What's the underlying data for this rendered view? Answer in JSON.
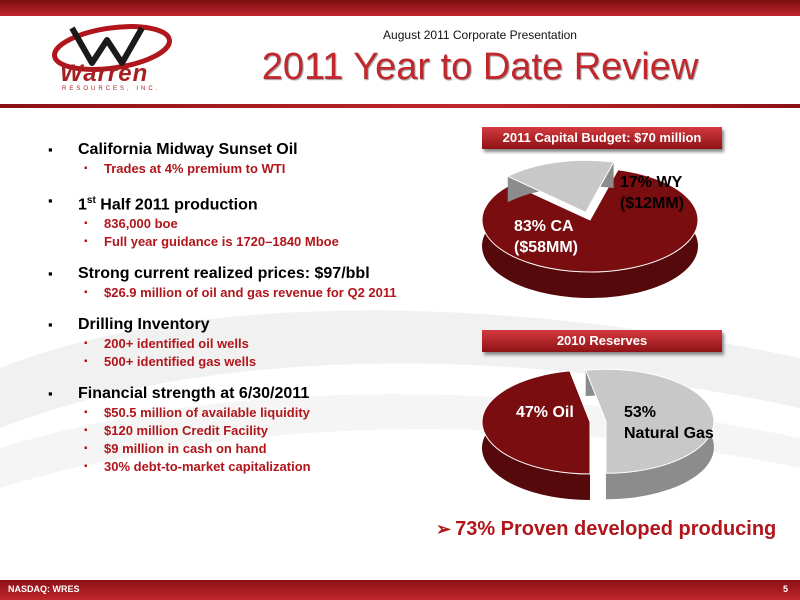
{
  "header": {
    "presentation_label": "August 2011 Corporate Presentation",
    "title": "2011 Year to Date Review",
    "logo_word": "Warren",
    "logo_sub": "RESOURCES, INC."
  },
  "bullets": [
    {
      "text": "California Midway Sunset Oil",
      "subs": [
        "Trades at 4% premium to WTI"
      ]
    },
    {
      "text_pre": "1",
      "text_sup": "st",
      "text_post": " Half 2011 production",
      "subs": [
        "836,000 boe",
        "Full year guidance is 1720–1840 Mboe"
      ]
    },
    {
      "text": "Strong current realized prices: $97/bbl",
      "subs": [
        "$26.9 million of oil and gas revenue for Q2 2011"
      ]
    },
    {
      "text": "Drilling Inventory",
      "subs": [
        "200+ identified oil wells",
        "500+ identified gas wells"
      ]
    },
    {
      "text": "Financial strength at 6/30/2011",
      "subs": [
        "$50.5 million of available liquidity",
        "$120 million Credit Facility",
        "$9 million in cash on hand",
        "30% debt-to-market capitalization"
      ]
    }
  ],
  "chart_data": [
    {
      "type": "pie",
      "title": "2011 Capital  Budget: $70 million",
      "slices": [
        {
          "label_line1": "83% CA",
          "label_line2": "($58MM)",
          "value": 83,
          "color": "#7a0d10"
        },
        {
          "label_line1": "17% WY",
          "label_line2": "($12MM)",
          "value": 17,
          "color": "#c8c8c8"
        }
      ]
    },
    {
      "type": "pie",
      "title": "2010 Reserves",
      "slices": [
        {
          "label_line1": "47% Oil",
          "label_line2": "",
          "value": 47,
          "color": "#7a0d10"
        },
        {
          "label_line1": "53%",
          "label_line2": "Natural Gas",
          "value": 53,
          "color": "#c8c8c8"
        }
      ]
    }
  ],
  "callout": {
    "arrow": "➢",
    "text": "73% Proven developed producing"
  },
  "footer": {
    "left": "NASDAQ: WRES",
    "right": "5"
  },
  "colors": {
    "brand_red": "#c1272d",
    "dark_red": "#7a0d10",
    "gray": "#c8c8c8"
  }
}
